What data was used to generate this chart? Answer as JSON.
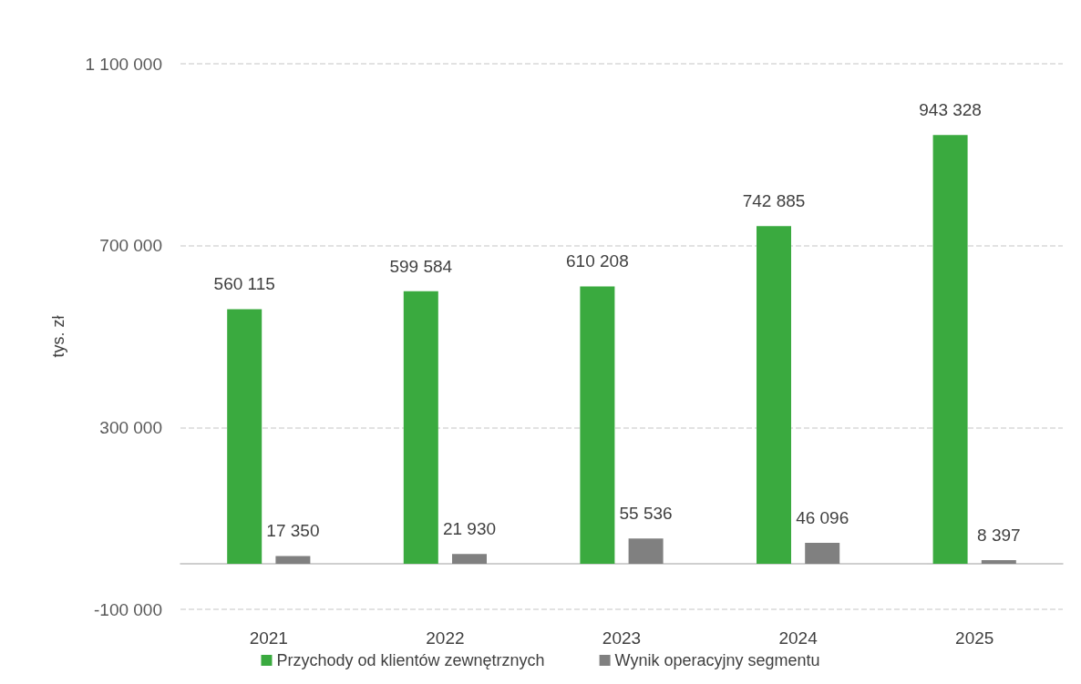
{
  "chart_data": {
    "type": "bar",
    "ylabel": "tys. zł",
    "categories": [
      "2021",
      "2022",
      "2023",
      "2024",
      "2025"
    ],
    "series": [
      {
        "name": "Przychody od klientów zewnętrznych",
        "color": "#3aaa3f",
        "values": [
          560115,
          599584,
          610208,
          742885,
          943328
        ],
        "value_labels": [
          "560 115",
          "599 584",
          "610 208",
          "742 885",
          "943 328"
        ]
      },
      {
        "name": "Wynik operacyjny segmentu",
        "color": "#808080",
        "values": [
          17350,
          21930,
          55536,
          46096,
          8397
        ],
        "value_labels": [
          "17 350",
          "21 930",
          "55 536",
          "46 096",
          "8 397"
        ]
      }
    ],
    "ylim": [
      -100000,
      1100000
    ],
    "yticks": [
      {
        "value": -100000,
        "label": "-100 000"
      },
      {
        "value": 300000,
        "label": "300 000"
      },
      {
        "value": 700000,
        "label": "700 000"
      },
      {
        "value": 1100000,
        "label": "1 100 000"
      }
    ],
    "grid": "y",
    "legend": "bottom"
  }
}
